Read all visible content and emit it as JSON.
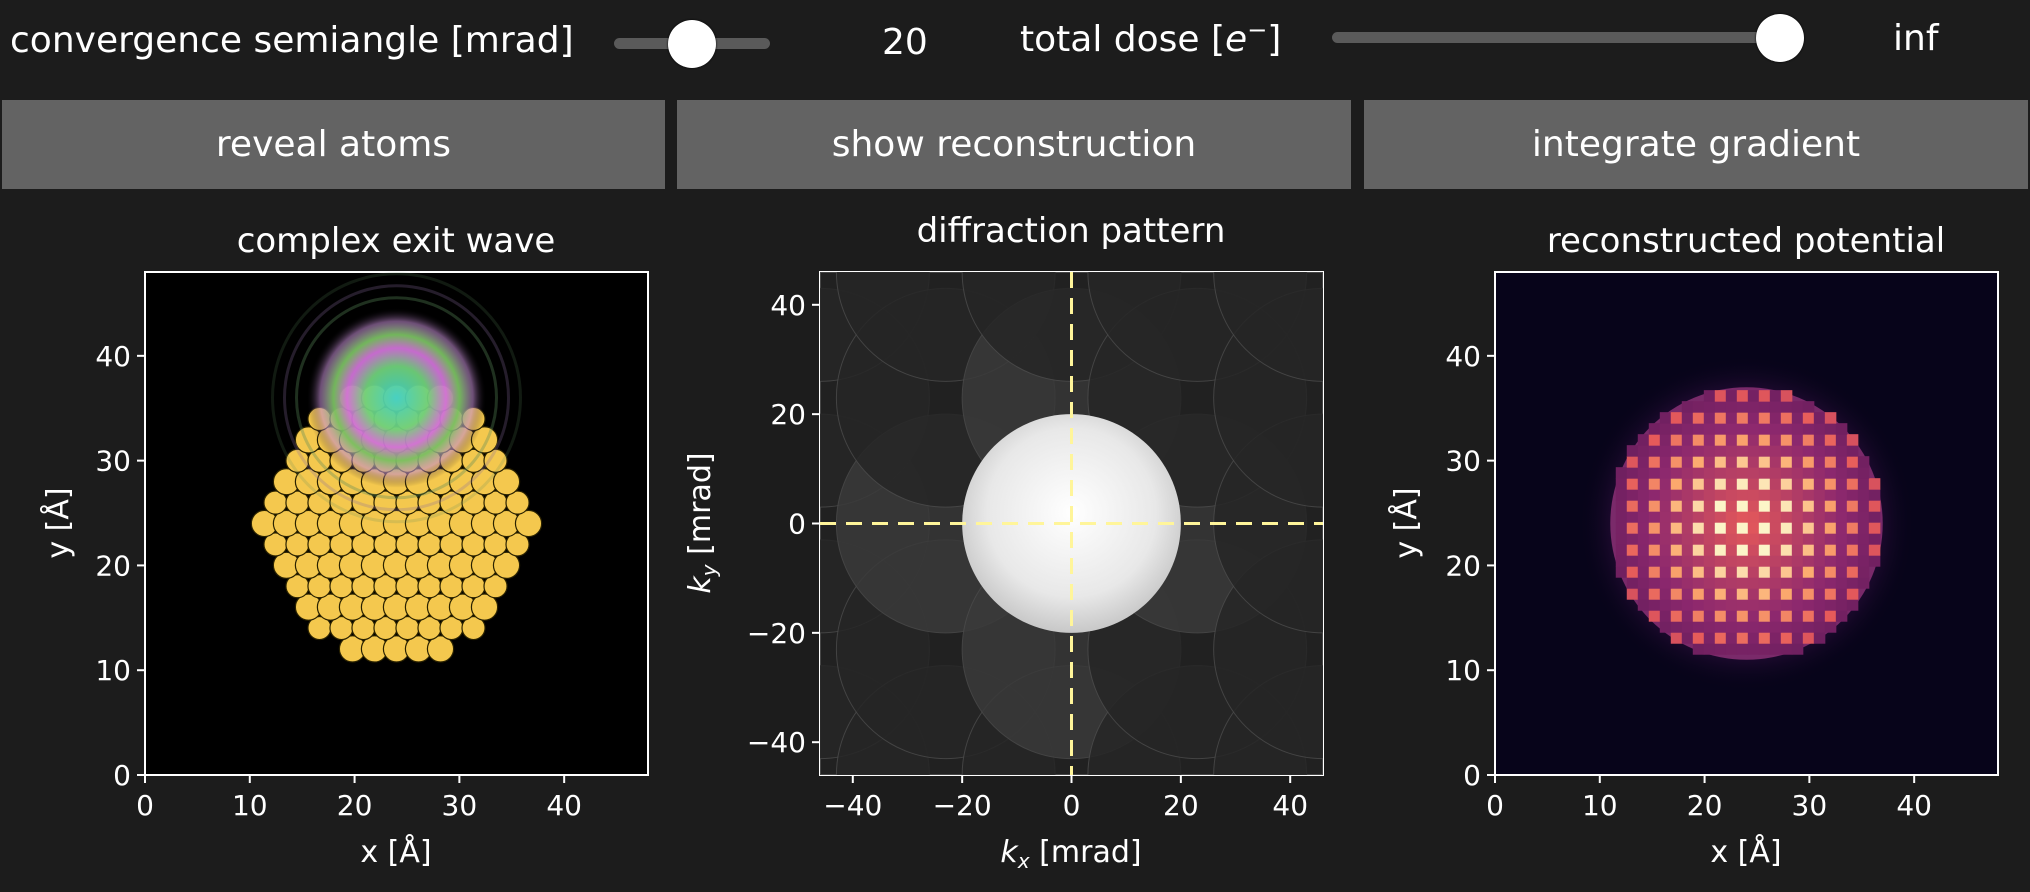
{
  "controls": {
    "convergence": {
      "label": "convergence semiangle [mrad]",
      "value": "20",
      "fraction": 0.5
    },
    "dose": {
      "label_main": "total dose [",
      "label_sym": "e",
      "label_sup": "−",
      "label_end": "]",
      "value": "inf",
      "fraction": 1.0
    }
  },
  "buttons": {
    "reveal": "reveal atoms",
    "reconstruct": "show reconstruction",
    "integrate": "integrate gradient"
  },
  "panels": {
    "exit_wave": {
      "title": "complex exit wave",
      "xlabel": "x [Å]",
      "ylabel": "y [Å]"
    },
    "diffraction": {
      "title": "diffraction pattern",
      "xlabel_sym": "k",
      "xlabel_sub": "x",
      "xlabel_unit": " [mrad]",
      "ylabel_sym": "k",
      "ylabel_sub": "y",
      "ylabel_unit": " [mrad]"
    },
    "potential": {
      "title": "reconstructed potential",
      "xlabel": "x [Å]",
      "ylabel": "y [Å]"
    }
  },
  "chart_data": [
    {
      "type": "heatmap",
      "title": "complex exit wave",
      "xlabel": "x [Å]",
      "ylabel": "y [Å]",
      "xlim": [
        0,
        48
      ],
      "ylim": [
        0,
        48
      ],
      "xticks": [
        0,
        10,
        20,
        30,
        40
      ],
      "yticks": [
        0,
        10,
        20,
        30,
        40
      ],
      "atom_cluster": {
        "center_x": 24,
        "center_y": 24,
        "radius": 13,
        "color": "#f4c84e"
      },
      "probe_position": [
        24,
        36
      ]
    },
    {
      "type": "heatmap",
      "title": "diffraction pattern",
      "xlabel": "kx [mrad]",
      "ylabel": "ky [mrad]",
      "xlim": [
        -46,
        46
      ],
      "ylim": [
        -46,
        46
      ],
      "xticks": [
        -40,
        -20,
        0,
        20,
        40
      ],
      "yticks": [
        -40,
        -20,
        0,
        20,
        40
      ],
      "bright_field_radius": 20,
      "crosshair": [
        0,
        0
      ],
      "crosshair_color": "#fff59a"
    },
    {
      "type": "heatmap",
      "title": "reconstructed potential",
      "xlabel": "x [Å]",
      "ylabel": "y [Å]",
      "xlim": [
        0,
        48
      ],
      "ylim": [
        0,
        48
      ],
      "xticks": [
        0,
        10,
        20,
        30,
        40
      ],
      "yticks": [
        0,
        10,
        20,
        30,
        40
      ],
      "cluster": {
        "center_x": 24,
        "center_y": 24,
        "radius": 13
      },
      "colormap": "magma"
    }
  ]
}
